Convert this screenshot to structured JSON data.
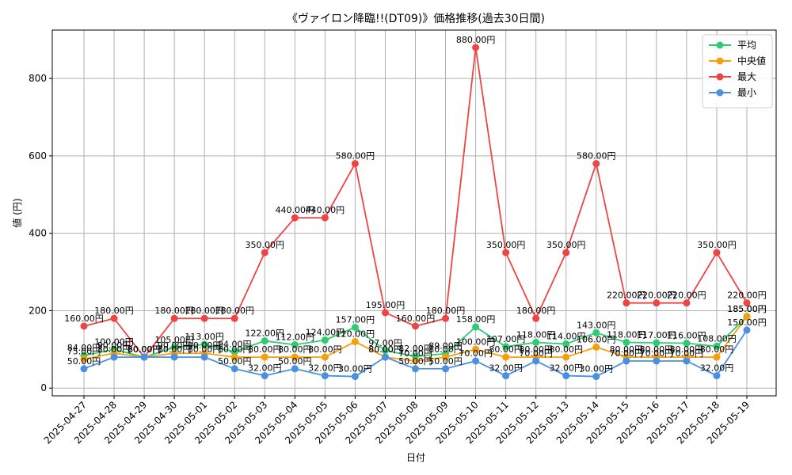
{
  "chart_data": {
    "type": "line",
    "title": "《ヴァイロン降臨!!(DT09)》価格推移(過去30日間)",
    "xlabel": "日付",
    "ylabel": "値 (円)",
    "ylim": [
      -20,
      925
    ],
    "y_ticks": [
      0,
      200,
      400,
      600,
      800
    ],
    "grid": true,
    "legend_position": "top-right",
    "value_suffix": "円",
    "categories": [
      "2025-04-27",
      "2025-04-28",
      "2025-04-29",
      "2025-04-30",
      "2025-05-01",
      "2025-05-02",
      "2025-05-03",
      "2025-05-04",
      "2025-05-05",
      "2025-05-06",
      "2025-05-07",
      "2025-05-08",
      "2025-05-09",
      "2025-05-10",
      "2025-05-11",
      "2025-05-12",
      "2025-05-13",
      "2025-05-14",
      "2025-05-15",
      "2025-05-16",
      "2025-05-17",
      "2025-05-18",
      "2025-05-19"
    ],
    "series": [
      {
        "name": "平均",
        "color": "#2ecc71",
        "values": [
          84,
          100,
          80,
          105,
          113,
          94,
          122,
          112,
          124,
          157,
          97,
          82,
          89,
          158,
          107,
          118,
          114,
          143,
          118,
          117,
          116,
          108,
          185
        ]
      },
      {
        "name": "中央値",
        "color": "#f5a00a",
        "values": [
          75,
          90,
          80,
          90,
          90,
          80,
          80,
          80,
          80,
          120,
          80,
          70,
          80,
          100,
          80,
          80,
          80,
          106,
          80,
          80,
          80,
          80,
          185
        ]
      },
      {
        "name": "最大",
        "color": "#ef4444",
        "values": [
          160,
          180,
          80,
          180,
          180,
          180,
          350,
          440,
          440,
          580,
          195,
          160,
          180,
          880,
          350,
          180,
          350,
          580,
          220,
          220,
          220,
          350,
          220
        ]
      },
      {
        "name": "最小",
        "color": "#4a90e2",
        "values": [
          50,
          80,
          80,
          80,
          80,
          50,
          32,
          50,
          32,
          30,
          80,
          50,
          50,
          70,
          32,
          70,
          32,
          30,
          70,
          70,
          70,
          32,
          150
        ]
      }
    ]
  }
}
